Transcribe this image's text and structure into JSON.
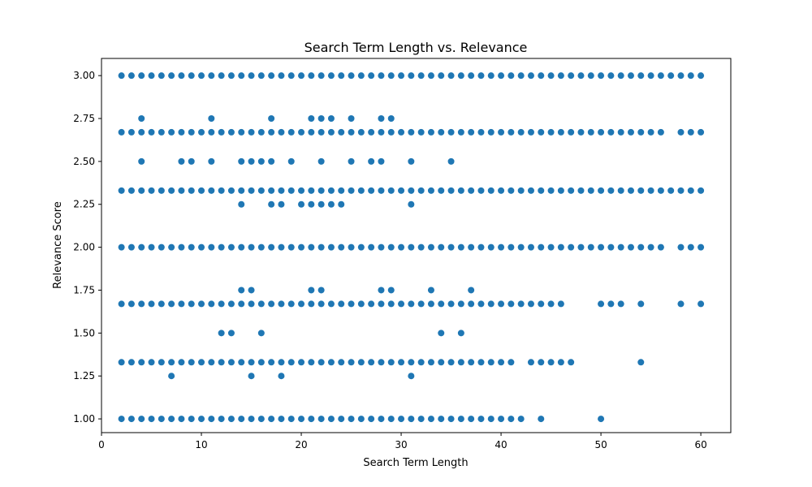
{
  "chart_data": {
    "type": "scatter",
    "title": "Search Term Length vs. Relevance",
    "xlabel": "Search Term Length",
    "ylabel": "Relevance Score",
    "xlim": [
      0,
      63
    ],
    "ylim": [
      0.92,
      3.1
    ],
    "x_ticks": [
      0,
      10,
      20,
      30,
      40,
      50,
      60
    ],
    "y_ticks": [
      1.0,
      1.25,
      1.5,
      1.75,
      2.0,
      2.25,
      2.5,
      2.75,
      3.0
    ],
    "x_tick_labels": [
      "0",
      "10",
      "20",
      "30",
      "40",
      "50",
      "60"
    ],
    "y_tick_labels": [
      "1.00",
      "1.25",
      "1.50",
      "1.75",
      "2.00",
      "2.25",
      "2.50",
      "2.75",
      "3.00"
    ],
    "color": "#1f77b4",
    "grid": false,
    "series": [
      {
        "rows": [
          {
            "y": 3.0,
            "x": [
              2,
              3,
              4,
              5,
              6,
              7,
              8,
              9,
              10,
              11,
              12,
              13,
              14,
              15,
              16,
              17,
              18,
              19,
              20,
              21,
              22,
              23,
              24,
              25,
              26,
              27,
              28,
              29,
              30,
              31,
              32,
              33,
              34,
              35,
              36,
              37,
              38,
              39,
              40,
              41,
              42,
              43,
              44,
              45,
              46,
              47,
              48,
              49,
              50,
              51,
              52,
              53,
              54,
              55,
              56,
              57,
              58,
              59,
              60
            ]
          },
          {
            "y": 2.75,
            "x": [
              4,
              11,
              17,
              21,
              22,
              23,
              25,
              28,
              29
            ]
          },
          {
            "y": 2.67,
            "x": [
              2,
              3,
              4,
              5,
              6,
              7,
              8,
              9,
              10,
              11,
              12,
              13,
              14,
              15,
              16,
              17,
              18,
              19,
              20,
              21,
              22,
              23,
              24,
              25,
              26,
              27,
              28,
              29,
              30,
              31,
              32,
              33,
              34,
              35,
              36,
              37,
              38,
              39,
              40,
              41,
              42,
              43,
              44,
              45,
              46,
              47,
              48,
              49,
              50,
              51,
              52,
              53,
              54,
              55,
              56,
              58,
              59,
              60
            ]
          },
          {
            "y": 2.5,
            "x": [
              4,
              8,
              9,
              11,
              14,
              15,
              16,
              17,
              19,
              22,
              25,
              27,
              28,
              31,
              35
            ]
          },
          {
            "y": 2.33,
            "x": [
              2,
              3,
              4,
              5,
              6,
              7,
              8,
              9,
              10,
              11,
              12,
              13,
              14,
              15,
              16,
              17,
              18,
              19,
              20,
              21,
              22,
              23,
              24,
              25,
              26,
              27,
              28,
              29,
              30,
              31,
              32,
              33,
              34,
              35,
              36,
              37,
              38,
              39,
              40,
              41,
              42,
              43,
              44,
              45,
              46,
              47,
              48,
              49,
              50,
              51,
              52,
              53,
              54,
              55,
              56,
              57,
              58,
              59,
              60
            ]
          },
          {
            "y": 2.25,
            "x": [
              14,
              17,
              18,
              20,
              21,
              22,
              23,
              24,
              31
            ]
          },
          {
            "y": 2.0,
            "x": [
              2,
              3,
              4,
              5,
              6,
              7,
              8,
              9,
              10,
              11,
              12,
              13,
              14,
              15,
              16,
              17,
              18,
              19,
              20,
              21,
              22,
              23,
              24,
              25,
              26,
              27,
              28,
              29,
              30,
              31,
              32,
              33,
              34,
              35,
              36,
              37,
              38,
              39,
              40,
              41,
              42,
              43,
              44,
              45,
              46,
              47,
              48,
              49,
              50,
              51,
              52,
              53,
              54,
              55,
              56,
              58,
              59,
              60
            ]
          },
          {
            "y": 1.75,
            "x": [
              14,
              15,
              21,
              22,
              28,
              29,
              33,
              37
            ]
          },
          {
            "y": 1.67,
            "x": [
              2,
              3,
              4,
              5,
              6,
              7,
              8,
              9,
              10,
              11,
              12,
              13,
              14,
              15,
              16,
              17,
              18,
              19,
              20,
              21,
              22,
              23,
              24,
              25,
              26,
              27,
              28,
              29,
              30,
              31,
              32,
              33,
              34,
              35,
              36,
              37,
              38,
              39,
              40,
              41,
              42,
              43,
              44,
              45,
              46,
              50,
              51,
              52,
              54,
              58,
              60
            ]
          },
          {
            "y": 1.5,
            "x": [
              12,
              13,
              16,
              34,
              36
            ]
          },
          {
            "y": 1.33,
            "x": [
              2,
              3,
              4,
              5,
              6,
              7,
              8,
              9,
              10,
              11,
              12,
              13,
              14,
              15,
              16,
              17,
              18,
              19,
              20,
              21,
              22,
              23,
              24,
              25,
              26,
              27,
              28,
              29,
              30,
              31,
              32,
              33,
              34,
              35,
              36,
              37,
              38,
              39,
              40,
              41,
              43,
              44,
              45,
              46,
              47,
              54
            ]
          },
          {
            "y": 1.25,
            "x": [
              7,
              15,
              18,
              31
            ]
          },
          {
            "y": 1.0,
            "x": [
              2,
              3,
              4,
              5,
              6,
              7,
              8,
              9,
              10,
              11,
              12,
              13,
              14,
              15,
              16,
              17,
              18,
              19,
              20,
              21,
              22,
              23,
              24,
              25,
              26,
              27,
              28,
              29,
              30,
              31,
              32,
              33,
              34,
              35,
              36,
              37,
              38,
              39,
              40,
              41,
              42,
              44,
              50
            ]
          }
        ]
      }
    ]
  }
}
